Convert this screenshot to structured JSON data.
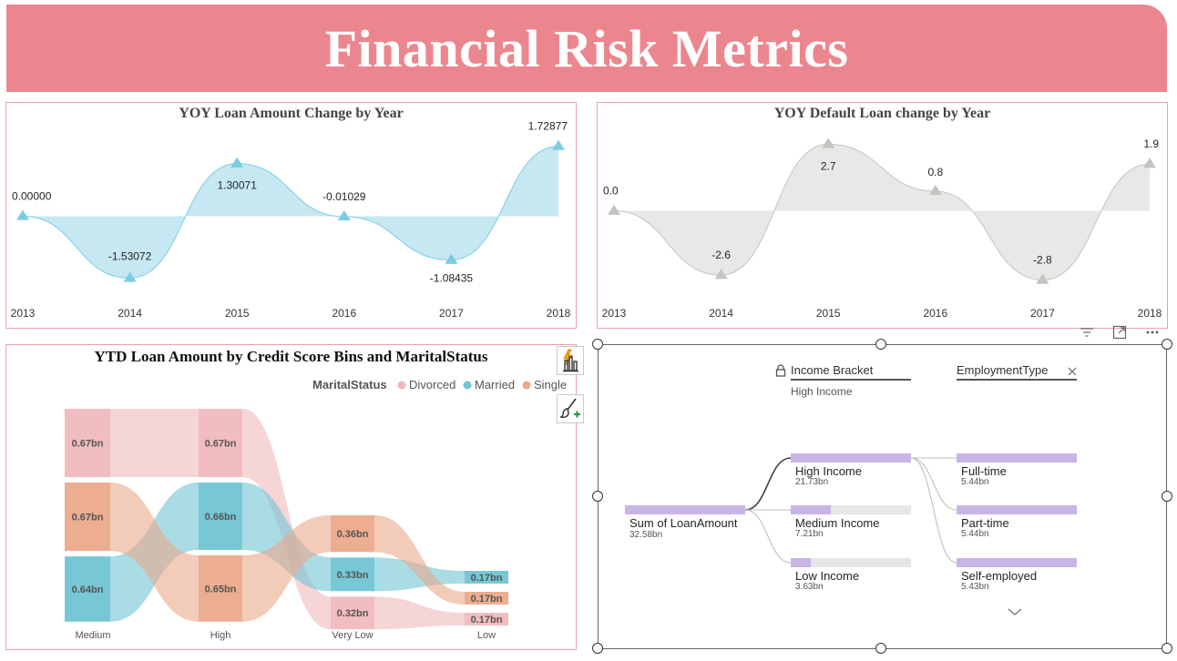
{
  "header": {
    "title": "Financial Risk Metrics"
  },
  "colors": {
    "banner": "#ec868e",
    "loan_line": "#7ccde4",
    "loan_fill": "#c6e8f3",
    "default_line": "#c4c4c0",
    "default_fill": "#e8e8e6",
    "divorced": "#f0b9bd",
    "married": "#71c4d4",
    "single": "#eba98a",
    "decomp_bar": "#c9b4e6"
  },
  "chart_data": [
    {
      "type": "area",
      "title": "YOY Loan Amount Change by Year",
      "x": [
        "2013",
        "2014",
        "2015",
        "2016",
        "2017",
        "2018"
      ],
      "values": [
        0.0,
        -1.53072,
        1.30071,
        -0.01029,
        -1.08435,
        1.72877
      ],
      "labels": [
        "0.00000",
        "-1.53072",
        "1.30071",
        "-0.01029",
        "-1.08435",
        "1.72877"
      ],
      "ylim": [
        -1.7,
        1.9
      ],
      "grid": false
    },
    {
      "type": "area",
      "title": "YOY Default Loan change by Year",
      "x": [
        "2013",
        "2014",
        "2015",
        "2016",
        "2017",
        "2018"
      ],
      "values": [
        0.0,
        -2.6,
        2.7,
        0.8,
        -2.8,
        1.9
      ],
      "labels": [
        "0.0",
        "-2.6",
        "2.7",
        "0.8",
        "-2.8",
        "1.9"
      ],
      "ylim": [
        -3.0,
        2.9
      ],
      "grid": false
    },
    {
      "type": "sankey",
      "title": "YTD Loan Amount by Credit Score Bins and MaritalStatus",
      "legend_title": "MaritalStatus",
      "legend": [
        "Divorced",
        "Married",
        "Single"
      ],
      "legend_placement": "top-right",
      "categories": [
        "Medium",
        "High",
        "Very Low",
        "Low"
      ],
      "nodes": {
        "Medium": [
          {
            "status": "Divorced",
            "value": 0.67,
            "label": "0.67bn"
          },
          {
            "status": "Single",
            "value": 0.67,
            "label": "0.67bn"
          },
          {
            "status": "Married",
            "value": 0.64,
            "label": "0.64bn"
          }
        ],
        "High": [
          {
            "status": "Divorced",
            "value": 0.67,
            "label": "0.67bn"
          },
          {
            "status": "Married",
            "value": 0.66,
            "label": "0.66bn"
          },
          {
            "status": "Single",
            "value": 0.65,
            "label": "0.65bn"
          }
        ],
        "Very Low": [
          {
            "status": "Single",
            "value": 0.36,
            "label": "0.36bn"
          },
          {
            "status": "Married",
            "value": 0.33,
            "label": "0.33bn"
          },
          {
            "status": "Divorced",
            "value": 0.32,
            "label": "0.32bn"
          }
        ],
        "Low": [
          {
            "status": "Married",
            "value": 0.17,
            "label": "0.17bn"
          },
          {
            "status": "Single",
            "value": 0.17,
            "label": "0.17bn"
          },
          {
            "status": "Divorced",
            "value": 0.17,
            "label": "0.17bn"
          }
        ]
      }
    },
    {
      "type": "decomposition-tree",
      "root": {
        "label": "Sum of LoanAmount",
        "value_label": "32.58bn",
        "value": 32.58
      },
      "levels": [
        {
          "header": "Income Bracket",
          "subheader": "High Income",
          "locked": true,
          "nodes": [
            {
              "label": "High Income",
              "value_label": "21.73bn",
              "value": 21.73
            },
            {
              "label": "Medium Income",
              "value_label": "7.21bn",
              "value": 7.21
            },
            {
              "label": "Low Income",
              "value_label": "3.63bn",
              "value": 3.63
            }
          ]
        },
        {
          "header": "EmploymentType",
          "locked": false,
          "nodes": [
            {
              "label": "Full-time",
              "value_label": "5.44bn",
              "value": 5.44
            },
            {
              "label": "Part-time",
              "value_label": "5.44bn",
              "value": 5.44
            },
            {
              "label": "Self-employed",
              "value_label": "5.43bn",
              "value": 5.43
            }
          ]
        }
      ]
    }
  ],
  "icons": {
    "format_visual": "bar-chart-lightning-icon",
    "format_brush": "paint-brush-icon",
    "filter": "filter-icon",
    "focus": "focus-mode-icon",
    "more": "more-options-icon",
    "lock": "lock-icon",
    "close": "close-icon",
    "expand": "chevron-down-icon"
  }
}
